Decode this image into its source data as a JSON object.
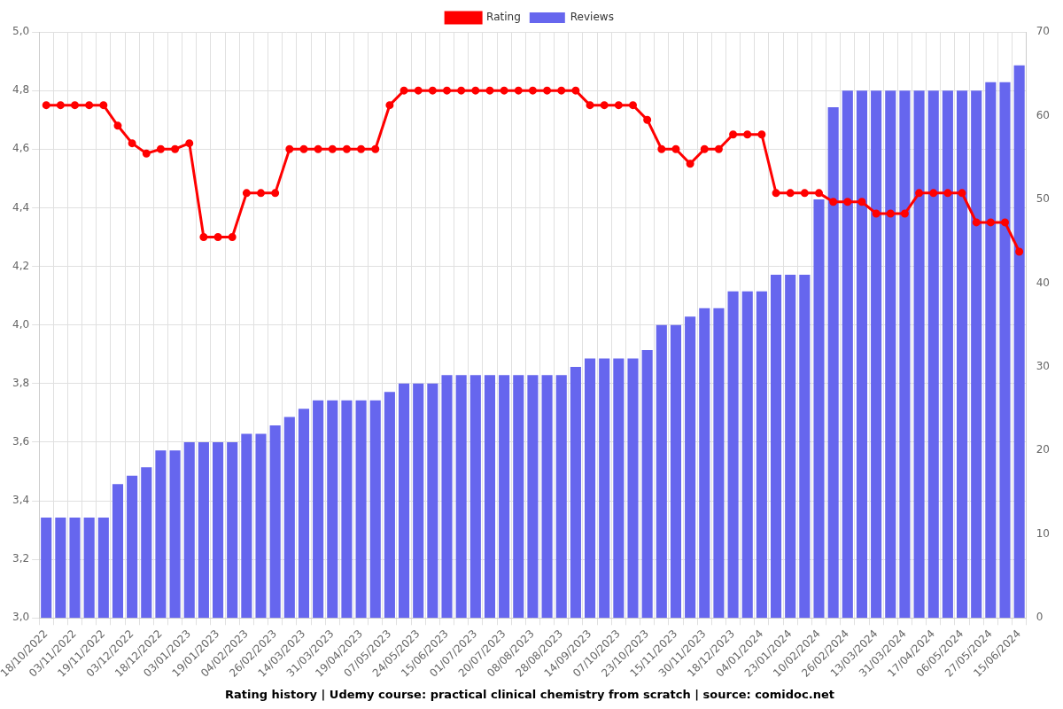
{
  "chart_data": {
    "type": "bar",
    "title": "Rating history | Udemy course: practical clinical chemistry from scratch | source: comidoc.net",
    "categories": [
      "18/10/2022",
      null,
      "03/11/2022",
      null,
      "19/11/2022",
      null,
      "03/12/2022",
      null,
      "18/12/2022",
      null,
      "03/01/2023",
      null,
      "19/01/2023",
      null,
      "04/02/2023",
      null,
      "26/02/2023",
      null,
      "14/03/2023",
      null,
      "31/03/2023",
      null,
      "19/04/2023",
      null,
      "07/05/2023",
      null,
      "24/05/2023",
      null,
      "15/06/2023",
      null,
      "01/07/2023",
      null,
      "20/07/2023",
      null,
      "08/08/2023",
      null,
      "28/08/2023",
      null,
      "14/09/2023",
      null,
      "07/10/2023",
      null,
      "23/10/2023",
      null,
      "15/11/2023",
      null,
      "30/11/2023",
      null,
      "18/12/2023",
      null,
      "04/01/2024",
      null,
      "23/01/2024",
      null,
      "10/02/2024",
      null,
      "26/02/2024",
      null,
      "13/03/2024",
      null,
      "31/03/2024",
      null,
      "17/04/2024",
      null,
      "06/05/2024",
      null,
      "27/05/2024",
      null,
      "15/06/2024"
    ],
    "series": [
      {
        "name": "Rating",
        "type": "line",
        "axis": "y",
        "color": "#ff0000",
        "marker": "circle",
        "line_style": "solid",
        "values": [
          4.75,
          4.75,
          4.75,
          4.75,
          4.75,
          4.68,
          4.62,
          4.585,
          4.6,
          4.6,
          4.62,
          4.3,
          4.3,
          4.3,
          4.45,
          4.45,
          4.45,
          4.6,
          4.6,
          4.6,
          4.6,
          4.6,
          4.6,
          4.6,
          4.75,
          4.8,
          4.8,
          4.8,
          4.8,
          4.8,
          4.8,
          4.8,
          4.8,
          4.8,
          4.8,
          4.8,
          4.8,
          4.8,
          4.75,
          4.75,
          4.75,
          4.75,
          4.7,
          4.6,
          4.6,
          4.55,
          4.6,
          4.6,
          4.65,
          4.65,
          4.65,
          4.45,
          4.45,
          4.45,
          4.45,
          4.42,
          4.42,
          4.42,
          4.38,
          4.38,
          4.38,
          4.45,
          4.45,
          4.45,
          4.45,
          4.35,
          4.35,
          4.35,
          4.25
        ]
      },
      {
        "name": "Reviews",
        "type": "bar",
        "axis": "y2",
        "color": "#6666ee",
        "values": [
          12,
          12,
          12,
          12,
          12,
          16,
          17,
          18,
          20,
          20,
          21,
          21,
          21,
          21,
          22,
          22,
          23,
          24,
          25,
          26,
          26,
          26,
          26,
          26,
          27,
          28,
          28,
          28,
          29,
          29,
          29,
          29,
          29,
          29,
          29,
          29,
          29,
          30,
          31,
          31,
          31,
          31,
          32,
          35,
          35,
          36,
          37,
          37,
          39,
          39,
          39,
          41,
          41,
          41,
          50,
          61,
          63,
          63,
          63,
          63,
          63,
          63,
          63,
          63,
          63,
          63,
          64,
          64,
          66
        ]
      }
    ],
    "ylim": [
      3.0,
      5.0
    ],
    "yticks": [
      {
        "value": 3.0,
        "label": "3,0"
      },
      {
        "value": 3.2,
        "label": "3,2"
      },
      {
        "value": 3.4,
        "label": "3,4"
      },
      {
        "value": 3.6,
        "label": "3,6"
      },
      {
        "value": 3.8,
        "label": "3,8"
      },
      {
        "value": 4.0,
        "label": "4,0"
      },
      {
        "value": 4.2,
        "label": "4,2"
      },
      {
        "value": 4.4,
        "label": "4,4"
      },
      {
        "value": 4.6,
        "label": "4,6"
      },
      {
        "value": 4.8,
        "label": "4,8"
      },
      {
        "value": 5.0,
        "label": "5,0"
      }
    ],
    "y2lim": [
      0,
      70
    ],
    "y2ticks": [
      0,
      10,
      20,
      30,
      40,
      50,
      60,
      70
    ],
    "grid": true,
    "legend": "top"
  }
}
